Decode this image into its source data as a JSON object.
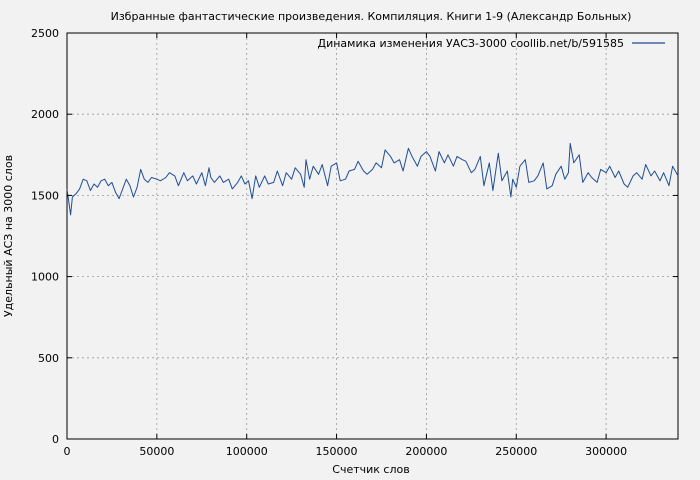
{
  "chart_data": {
    "type": "line",
    "title": "Избранные фантастические произведения. Компиляция. Книги 1-9 (Александр Больных)",
    "xlabel": "Счетчик слов",
    "ylabel": "Удельный АСЗ на 3000 слов",
    "xlim": [
      0,
      340000
    ],
    "ylim": [
      0,
      2500
    ],
    "xticks": [
      0,
      50000,
      100000,
      150000,
      200000,
      250000,
      300000
    ],
    "xtick_labels": [
      "0",
      "50000",
      "100000",
      "150000",
      "200000",
      "250000",
      "300000"
    ],
    "yticks": [
      0,
      500,
      1000,
      1500,
      2000,
      2500
    ],
    "ytick_labels": [
      "0",
      "500",
      "1000",
      "1500",
      "2000",
      "2500"
    ],
    "grid": true,
    "legend_position": "top-right",
    "series": [
      {
        "name": "Динамика изменения УАСЗ-3000 coollib.net/b/591585",
        "color": "#1f4e96",
        "x": [
          0,
          1000,
          2000,
          3000,
          5000,
          7000,
          9000,
          11000,
          13000,
          15000,
          17000,
          19000,
          21000,
          23000,
          25000,
          27000,
          29000,
          31000,
          33000,
          35000,
          37000,
          39000,
          41000,
          43000,
          45000,
          47000,
          50000,
          52000,
          55000,
          57000,
          60000,
          62000,
          65000,
          67000,
          70000,
          72000,
          75000,
          77000,
          79000,
          80000,
          82000,
          85000,
          87000,
          90000,
          92000,
          95000,
          97000,
          99000,
          101000,
          103000,
          105000,
          107000,
          110000,
          112000,
          115000,
          117000,
          120000,
          122000,
          125000,
          127000,
          130000,
          132000,
          133000,
          135000,
          137000,
          140000,
          142000,
          145000,
          147000,
          150000,
          152000,
          155000,
          157000,
          160000,
          162000,
          165000,
          167000,
          170000,
          172000,
          175000,
          177000,
          180000,
          182000,
          185000,
          187000,
          190000,
          192000,
          195000,
          197000,
          200000,
          202000,
          205000,
          207000,
          210000,
          212000,
          215000,
          217000,
          220000,
          222000,
          225000,
          227000,
          230000,
          232000,
          235000,
          237000,
          240000,
          242000,
          245000,
          247000,
          248000,
          250000,
          252000,
          255000,
          257000,
          260000,
          262000,
          265000,
          267000,
          270000,
          272000,
          275000,
          277000,
          279000,
          280000,
          282000,
          285000,
          287000,
          290000,
          292000,
          295000,
          297000,
          300000,
          302000,
          305000,
          307000,
          310000,
          312000,
          315000,
          317000,
          320000,
          322000,
          325000,
          327000,
          330000,
          332000,
          335000,
          337000,
          340000
        ],
        "values": [
          1540,
          1460,
          1380,
          1490,
          1510,
          1540,
          1600,
          1590,
          1530,
          1570,
          1550,
          1590,
          1600,
          1560,
          1580,
          1520,
          1480,
          1540,
          1600,
          1560,
          1490,
          1550,
          1660,
          1600,
          1580,
          1610,
          1600,
          1590,
          1610,
          1640,
          1620,
          1560,
          1640,
          1590,
          1620,
          1570,
          1640,
          1560,
          1670,
          1610,
          1580,
          1620,
          1580,
          1600,
          1540,
          1580,
          1620,
          1570,
          1590,
          1480,
          1620,
          1550,
          1620,
          1570,
          1580,
          1650,
          1560,
          1640,
          1600,
          1670,
          1630,
          1550,
          1720,
          1600,
          1680,
          1630,
          1690,
          1560,
          1680,
          1700,
          1590,
          1600,
          1650,
          1660,
          1710,
          1650,
          1630,
          1660,
          1700,
          1670,
          1780,
          1740,
          1700,
          1720,
          1650,
          1790,
          1740,
          1680,
          1740,
          1770,
          1740,
          1650,
          1770,
          1700,
          1750,
          1680,
          1740,
          1720,
          1710,
          1640,
          1660,
          1740,
          1560,
          1700,
          1530,
          1760,
          1590,
          1650,
          1490,
          1600,
          1550,
          1680,
          1720,
          1580,
          1590,
          1620,
          1700,
          1540,
          1560,
          1630,
          1680,
          1600,
          1640,
          1820,
          1700,
          1750,
          1580,
          1640,
          1610,
          1580,
          1660,
          1640,
          1680,
          1610,
          1650,
          1570,
          1550,
          1620,
          1640,
          1600,
          1690,
          1620,
          1650,
          1590,
          1640,
          1560,
          1680,
          1620
        ]
      }
    ]
  }
}
